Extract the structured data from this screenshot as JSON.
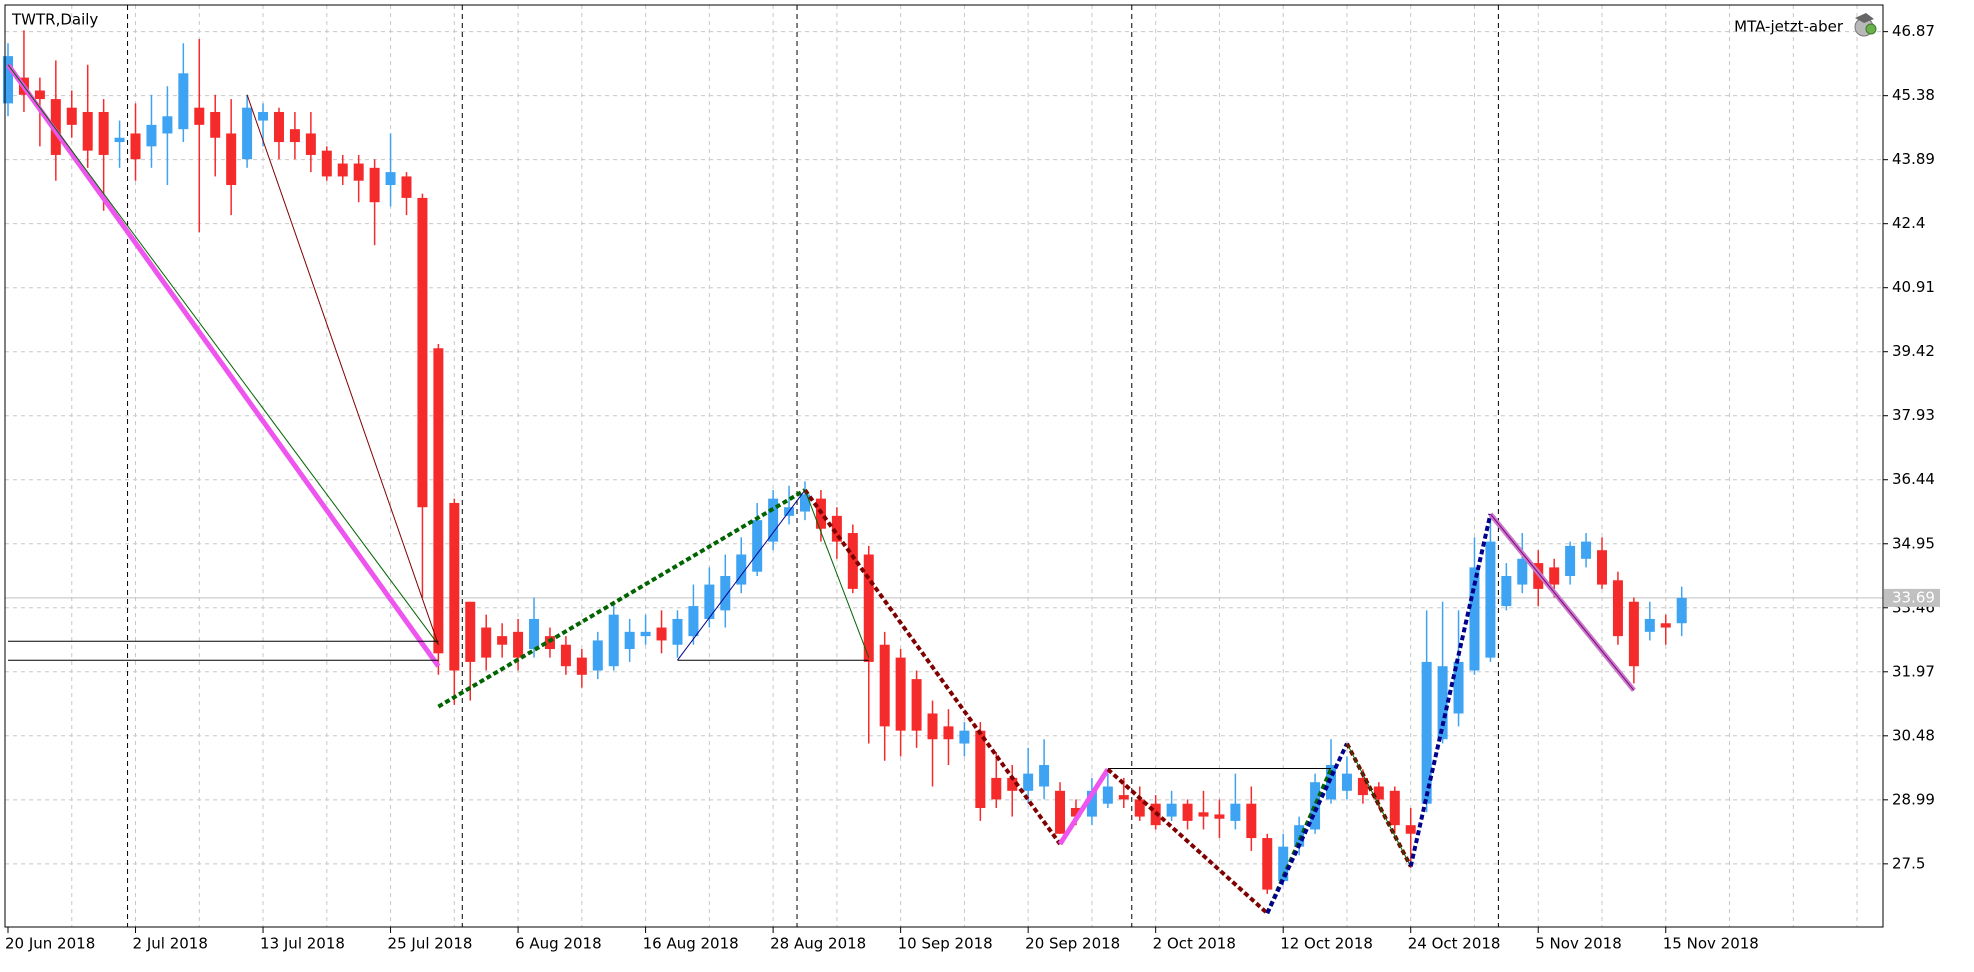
{
  "chart_data": {
    "type": "candlestick",
    "title": "TWTR,Daily",
    "expert": "MTA-jetzt-aber",
    "up_color": "#3ea3f2",
    "down_color": "#f52a2a",
    "grid": true,
    "ylim": [
      26.03,
      47.49
    ],
    "yticks": [
      46.87,
      45.38,
      43.89,
      42.4,
      40.91,
      39.42,
      37.93,
      36.44,
      34.95,
      33.46,
      31.97,
      30.48,
      28.99,
      27.5
    ],
    "current_price": 33.69,
    "separators": [
      8,
      29,
      50,
      71,
      94
    ],
    "categories": [
      "20 Jun 2018",
      null,
      null,
      null,
      null,
      null,
      null,
      null,
      "2 Jul 2018",
      null,
      null,
      null,
      null,
      null,
      null,
      null,
      "13 Jul 2018",
      null,
      null,
      null,
      null,
      null,
      null,
      null,
      "25 Jul 2018",
      null,
      null,
      null,
      null,
      null,
      null,
      null,
      "6 Aug 2018",
      null,
      null,
      null,
      null,
      null,
      null,
      null,
      "16 Aug 2018",
      null,
      null,
      null,
      null,
      null,
      null,
      null,
      "28 Aug 2018",
      null,
      null,
      null,
      null,
      null,
      null,
      null,
      "10 Sep 2018",
      null,
      null,
      null,
      null,
      null,
      null,
      null,
      "20 Sep 2018",
      null,
      null,
      null,
      null,
      null,
      null,
      null,
      "2 Oct 2018",
      null,
      null,
      null,
      null,
      null,
      null,
      null,
      "12 Oct 2018",
      null,
      null,
      null,
      null,
      null,
      null,
      null,
      "24 Oct 2018",
      null,
      null,
      null,
      null,
      null,
      null,
      null,
      "5 Nov 2018",
      null,
      null,
      null,
      null,
      null,
      null,
      null,
      "15 Nov 2018",
      null
    ],
    "open": [
      45.2,
      45.8,
      45.5,
      45.3,
      45.1,
      45.0,
      45.0,
      44.3,
      44.5,
      44.2,
      44.5,
      44.6,
      45.1,
      45.0,
      44.5,
      43.9,
      44.8,
      45.0,
      44.6,
      44.5,
      44.1,
      43.8,
      43.8,
      43.7,
      43.3,
      43.5,
      43.0,
      39.5,
      35.9,
      33.6,
      33.0,
      32.8,
      32.9,
      32.5,
      32.8,
      32.6,
      32.3,
      32.0,
      32.1,
      32.5,
      32.8,
      33.0,
      32.6,
      32.8,
      33.2,
      33.4,
      34.0,
      34.3,
      35.0,
      35.6,
      35.7,
      36.0,
      35.6,
      35.2,
      34.7,
      32.6,
      32.3,
      31.8,
      31.0,
      30.7,
      30.3,
      30.6,
      29.5,
      29.5,
      29.2,
      29.3,
      29.2,
      28.8,
      28.6,
      28.9,
      29.1,
      29.0,
      28.9,
      28.6,
      28.9,
      28.7,
      28.65,
      28.5,
      28.9,
      28.1,
      27.1,
      27.9,
      28.3,
      29.0,
      29.2,
      29.5,
      29.3,
      29.2,
      28.4,
      28.9,
      30.4,
      31.0,
      32.0,
      32.3,
      33.5,
      34.0,
      34.5,
      34.4,
      34.2,
      34.6,
      34.8,
      34.1,
      33.6,
      32.9,
      33.1,
      33.1
    ],
    "high": [
      46.6,
      46.9,
      45.8,
      46.2,
      45.5,
      46.1,
      45.3,
      44.8,
      45.2,
      45.4,
      45.6,
      46.6,
      46.7,
      45.4,
      45.3,
      45.4,
      45.2,
      45.1,
      45.0,
      45.0,
      44.2,
      44.0,
      44.0,
      43.9,
      44.5,
      43.6,
      43.1,
      39.6,
      36.0,
      33.6,
      33.3,
      33.1,
      33.2,
      33.7,
      33.0,
      32.8,
      32.5,
      32.9,
      33.6,
      33.2,
      33.3,
      33.4,
      33.4,
      34.0,
      34.4,
      34.7,
      35.1,
      35.9,
      36.2,
      36.3,
      36.4,
      36.2,
      35.8,
      35.4,
      34.9,
      32.9,
      32.5,
      32.0,
      31.3,
      31.1,
      30.8,
      30.8,
      30.1,
      29.8,
      30.2,
      30.4,
      29.4,
      29.0,
      29.5,
      29.6,
      29.5,
      29.3,
      29.1,
      29.2,
      29.0,
      29.2,
      29.0,
      29.6,
      29.3,
      28.2,
      28.2,
      28.6,
      29.6,
      30.4,
      30.0,
      29.7,
      29.4,
      29.3,
      28.8,
      33.4,
      33.6,
      33.4,
      35.1,
      35.6,
      34.5,
      35.2,
      34.8,
      34.6,
      35.0,
      35.2,
      35.1,
      34.3,
      33.7,
      33.6,
      33.3,
      33.95
    ],
    "low": [
      44.9,
      45.0,
      44.2,
      43.4,
      44.4,
      43.7,
      42.7,
      43.7,
      43.4,
      43.7,
      43.3,
      44.3,
      42.2,
      43.5,
      42.6,
      43.7,
      44.2,
      43.9,
      43.9,
      43.6,
      43.4,
      43.3,
      42.9,
      41.9,
      42.8,
      42.6,
      33.7,
      31.9,
      31.2,
      31.3,
      32.0,
      32.3,
      32.0,
      32.3,
      32.3,
      31.9,
      31.6,
      31.8,
      32.0,
      32.2,
      32.6,
      32.4,
      32.3,
      32.6,
      33.0,
      33.0,
      33.8,
      34.2,
      34.8,
      35.4,
      35.5,
      35.0,
      34.6,
      33.8,
      30.3,
      29.9,
      30.0,
      30.2,
      29.3,
      29.8,
      30.0,
      28.5,
      28.8,
      28.6,
      28.9,
      29.0,
      28.2,
      28.4,
      28.4,
      28.8,
      28.8,
      28.5,
      28.3,
      28.5,
      28.3,
      28.3,
      28.1,
      28.3,
      27.8,
      26.8,
      27.0,
      27.7,
      28.2,
      28.9,
      29.0,
      28.9,
      28.8,
      28.2,
      27.4,
      28.7,
      30.3,
      30.7,
      31.9,
      32.2,
      33.4,
      33.8,
      33.5,
      33.7,
      34.0,
      34.4,
      33.9,
      32.6,
      31.7,
      32.7,
      32.6,
      32.8
    ],
    "close": [
      46.3,
      45.4,
      45.3,
      44.0,
      44.7,
      44.1,
      44.0,
      44.4,
      43.9,
      44.7,
      44.9,
      45.9,
      44.7,
      44.4,
      43.3,
      45.1,
      45.0,
      44.3,
      44.3,
      44.0,
      43.5,
      43.5,
      43.4,
      42.9,
      43.6,
      43.0,
      35.8,
      32.4,
      32.0,
      32.2,
      32.3,
      32.6,
      32.3,
      33.2,
      32.5,
      32.1,
      31.9,
      32.7,
      33.3,
      32.9,
      32.9,
      32.7,
      33.2,
      33.5,
      34.0,
      34.2,
      34.7,
      35.5,
      36.0,
      35.8,
      36.1,
      35.3,
      35.0,
      33.9,
      32.2,
      30.7,
      30.6,
      30.6,
      30.4,
      30.4,
      30.6,
      28.8,
      29.0,
      29.2,
      29.6,
      29.8,
      28.2,
      28.6,
      29.2,
      29.3,
      29.0,
      28.6,
      28.4,
      28.9,
      28.5,
      28.6,
      28.55,
      28.9,
      28.1,
      26.9,
      27.9,
      28.4,
      29.4,
      29.8,
      29.6,
      29.1,
      29.0,
      28.4,
      28.2,
      32.2,
      32.1,
      32.2,
      34.4,
      35.0,
      34.2,
      34.6,
      33.9,
      34.0,
      34.9,
      35.0,
      34.0,
      32.8,
      32.1,
      33.2,
      33.0,
      33.69
    ],
    "overlays": [
      {
        "color": "#ee55ee",
        "width": 5,
        "dashed": false,
        "x": [
          0,
          27
        ],
        "values": [
          46.1,
          32.1
        ]
      },
      {
        "color": "#006400",
        "width": 1,
        "dashed": false,
        "x": [
          0,
          27
        ],
        "values": [
          46.1,
          32.6
        ]
      },
      {
        "color": "#800000",
        "width": 1,
        "dashed": false,
        "x": [
          15,
          27
        ],
        "values": [
          45.4,
          32.6
        ]
      },
      {
        "color": "#000000",
        "width": 1,
        "dashed": false,
        "x": [
          0,
          27
        ],
        "values": [
          32.68,
          32.68
        ]
      },
      {
        "color": "#000000",
        "width": 1,
        "dashed": false,
        "x": [
          0,
          27
        ],
        "values": [
          32.24,
          32.24
        ]
      },
      {
        "color": "#006400",
        "width": 4,
        "dashed": true,
        "x": [
          27,
          50
        ],
        "values": [
          31.16,
          36.2
        ]
      },
      {
        "color": "#000000",
        "width": 1,
        "dashed": false,
        "x": [
          42,
          54
        ],
        "values": [
          32.24,
          32.24
        ]
      },
      {
        "color": "#00008b",
        "width": 1,
        "dashed": false,
        "x": [
          42,
          50
        ],
        "values": [
          32.24,
          36.2
        ]
      },
      {
        "color": "#800000",
        "width": 4,
        "dashed": true,
        "x": [
          50,
          66
        ],
        "values": [
          36.2,
          27.96
        ]
      },
      {
        "color": "#006400",
        "width": 1,
        "dashed": false,
        "x": [
          50,
          54
        ],
        "values": [
          36.2,
          32.3
        ]
      },
      {
        "color": "#ee55ee",
        "width": 5,
        "dashed": false,
        "x": [
          66,
          69
        ],
        "values": [
          27.96,
          29.7
        ]
      },
      {
        "color": "#000000",
        "width": 1,
        "dashed": false,
        "x": [
          69,
          83
        ],
        "values": [
          29.72,
          29.72
        ]
      },
      {
        "color": "#800000",
        "width": 4,
        "dashed": true,
        "x": [
          69,
          79
        ],
        "values": [
          29.7,
          26.35
        ]
      },
      {
        "color": "#006400",
        "width": 4,
        "dashed": true,
        "x": [
          79,
          83
        ],
        "values": [
          26.35,
          29.7
        ]
      },
      {
        "color": "#00008b",
        "width": 4,
        "dashed": true,
        "x": [
          79,
          84
        ],
        "values": [
          26.35,
          30.3
        ]
      },
      {
        "color": "#800000",
        "width": 4,
        "dashed": true,
        "x": [
          84,
          88
        ],
        "values": [
          30.3,
          27.44
        ]
      },
      {
        "color": "#006400",
        "width": 1,
        "dashed": false,
        "x": [
          84,
          88
        ],
        "values": [
          30.3,
          27.44
        ]
      },
      {
        "color": "#00008b",
        "width": 4,
        "dashed": true,
        "x": [
          88,
          93
        ],
        "values": [
          27.44,
          35.64
        ]
      },
      {
        "color": "#c87ac8",
        "width": 5,
        "dashed": false,
        "x": [
          93,
          102
        ],
        "values": [
          35.64,
          31.54
        ]
      },
      {
        "color": "#800080",
        "width": 1,
        "dashed": false,
        "x": [
          93,
          102
        ],
        "values": [
          35.64,
          31.54
        ]
      }
    ]
  }
}
